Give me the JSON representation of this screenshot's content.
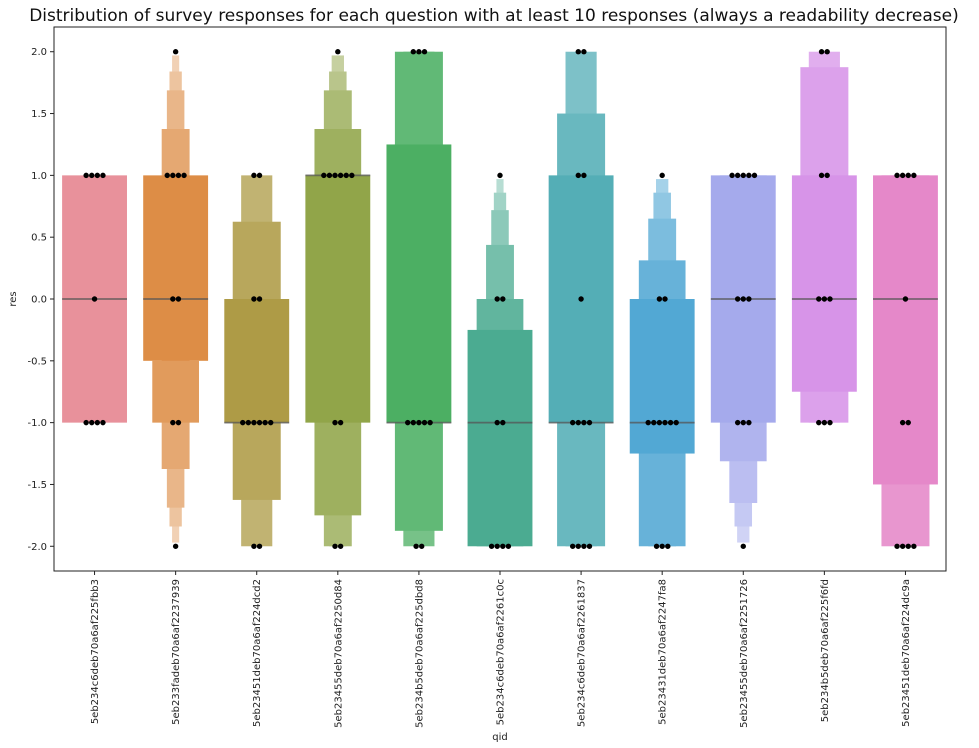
{
  "chart_data": {
    "type": "boxenplot",
    "title": "Distribution of survey responses for each question with at least 10 responses (always a readability decrease)",
    "xlabel": "qid",
    "ylabel": "res",
    "ylim": [
      -2.2,
      2.2
    ],
    "yticks": [
      "-2.0",
      "-1.5",
      "-1.0",
      "-0.5",
      "0.0",
      "0.5",
      "1.0",
      "1.5",
      "2.0"
    ],
    "grid": false,
    "categories": [
      {
        "qid": "5eb234c6deb70a6af225fbb3",
        "color": "#e8919b",
        "boxes": [
          [
            -1,
            1
          ]
        ],
        "median": 0,
        "points": [
          [
            1,
            4
          ],
          [
            0,
            1
          ],
          [
            -1,
            4
          ]
        ]
      },
      {
        "qid": "5eb233fadeb70a6af2237939",
        "color": "#dd8d46",
        "boxes": [
          [
            -0.5,
            1
          ],
          [
            -1,
            -0.5
          ],
          [
            -1.375,
            1.375
          ],
          [
            -1.6875,
            1.6875
          ],
          [
            -1.84,
            1.84
          ],
          [
            -1.97,
            1.97
          ]
        ],
        "median": 0,
        "points": [
          [
            2,
            1
          ],
          [
            1,
            4
          ],
          [
            0,
            2
          ],
          [
            -1,
            2
          ],
          [
            -2,
            1
          ]
        ]
      },
      {
        "qid": "5eb23451deb70a6af224dcd2",
        "color": "#ae9b46",
        "boxes": [
          [
            -1,
            0
          ],
          [
            -1.625,
            0.625
          ],
          [
            -2,
            1
          ]
        ],
        "median": -1,
        "points": [
          [
            1,
            2
          ],
          [
            0,
            2
          ],
          [
            -1,
            6
          ],
          [
            -2,
            2
          ]
        ]
      },
      {
        "qid": "5eb23455deb70a6af2250d84",
        "color": "#91a549",
        "boxes": [
          [
            -1,
            1
          ],
          [
            -1.75,
            1.375
          ],
          [
            -2,
            1.6875
          ],
          [
            -2,
            1.84
          ],
          [
            -2,
            1.97
          ]
        ],
        "median": 1,
        "points": [
          [
            2,
            1
          ],
          [
            1,
            6
          ],
          [
            -1,
            2
          ],
          [
            -2,
            2
          ]
        ]
      },
      {
        "qid": "5eb234b5deb70a6af225dbd8",
        "color": "#4caf63",
        "boxes": [
          [
            -1,
            1.25
          ],
          [
            -1.875,
            2
          ],
          [
            -2,
            2
          ]
        ],
        "median": -1,
        "points": [
          [
            2,
            3
          ],
          [
            -1,
            5
          ],
          [
            -2,
            2
          ]
        ]
      },
      {
        "qid": "5eb234c6deb70a6af2261c0c",
        "color": "#4bab91",
        "boxes": [
          [
            -2,
            -0.25
          ],
          [
            -2,
            0
          ],
          [
            -2,
            0.4375
          ],
          [
            -2,
            0.71875
          ],
          [
            -2,
            0.86
          ],
          [
            -2,
            0.97
          ]
        ],
        "median": -1,
        "points": [
          [
            1,
            1
          ],
          [
            0,
            2
          ],
          [
            -1,
            2
          ],
          [
            -2,
            4
          ]
        ]
      },
      {
        "qid": "5eb234c6deb70a6af2261837",
        "color": "#54aeb6",
        "boxes": [
          [
            -1,
            1
          ],
          [
            -2,
            1.5
          ],
          [
            -2,
            2
          ]
        ],
        "median": -1,
        "points": [
          [
            2,
            2
          ],
          [
            1,
            2
          ],
          [
            0,
            1
          ],
          [
            -1,
            4
          ],
          [
            -2,
            4
          ]
        ]
      },
      {
        "qid": "5eb23431deb70a6af2247fa8",
        "color": "#52a8d4",
        "boxes": [
          [
            -1.25,
            0
          ],
          [
            -2,
            0.3125
          ],
          [
            -2,
            0.65
          ],
          [
            -2,
            0.86
          ],
          [
            -2,
            0.97
          ]
        ],
        "median": -1,
        "points": [
          [
            1,
            1
          ],
          [
            0,
            2
          ],
          [
            -1,
            6
          ],
          [
            -2,
            3
          ]
        ]
      },
      {
        "qid": "5eb23455deb70a6af2251726",
        "color": "#a5aaec",
        "boxes": [
          [
            -1,
            1
          ],
          [
            -1.3125,
            1
          ],
          [
            -1.65,
            1
          ],
          [
            -1.84,
            1
          ],
          [
            -1.97,
            1
          ]
        ],
        "median": 0,
        "points": [
          [
            1,
            5
          ],
          [
            0,
            3
          ],
          [
            -1,
            3
          ],
          [
            -2,
            1
          ]
        ]
      },
      {
        "qid": "5eb234b5deb70a6af225f6fd",
        "color": "#d794e8",
        "boxes": [
          [
            -0.75,
            1
          ],
          [
            -1,
            1.875
          ],
          [
            -1,
            2
          ]
        ],
        "median": 0,
        "points": [
          [
            2,
            2
          ],
          [
            1,
            2
          ],
          [
            0,
            3
          ],
          [
            -1,
            3
          ]
        ]
      },
      {
        "qid": "5eb23451deb70a6af224dc9a",
        "color": "#e588c9",
        "boxes": [
          [
            -1.5,
            1
          ],
          [
            -2,
            1
          ]
        ],
        "median": 0,
        "points": [
          [
            1,
            4
          ],
          [
            0,
            1
          ],
          [
            -1,
            2
          ],
          [
            -2,
            4
          ]
        ]
      }
    ]
  }
}
